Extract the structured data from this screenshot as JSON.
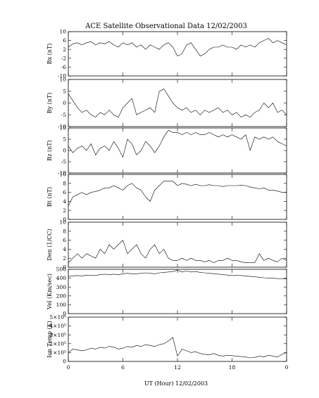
{
  "chart_data": {
    "type": "line",
    "title": "ACE Satellite Observational Data   12/02/2003",
    "xlabel": "UT (Hour)   12/02/2003",
    "x_ticks": [
      "0",
      "6",
      "12",
      "18",
      "0"
    ],
    "xlim": [
      0,
      24
    ],
    "panels": [
      {
        "ylabel": "Bx (nT)",
        "ylim": [
          -10,
          10
        ],
        "y_ticks": [
          "10",
          "6",
          "2",
          "-2",
          "-6",
          "-10"
        ],
        "x": [
          0,
          0.5,
          1,
          1.5,
          2,
          2.5,
          3,
          3.5,
          4,
          4.5,
          5,
          5.5,
          6,
          6.5,
          7,
          7.5,
          8,
          8.5,
          9,
          9.5,
          10,
          10.5,
          11,
          11.5,
          12,
          12.5,
          13,
          13.5,
          14,
          14.5,
          15,
          15.5,
          16,
          16.5,
          17,
          17.5,
          18,
          18.5,
          19,
          19.5,
          20,
          20.5,
          21,
          21.5,
          22,
          22.5,
          23,
          23.5,
          24
        ],
        "values": [
          3,
          4.5,
          5,
          4,
          5,
          5.5,
          4,
          5,
          4.5,
          5.5,
          4,
          3,
          5,
          4,
          5,
          3,
          4,
          2,
          4,
          3,
          2,
          4,
          5,
          3,
          -1,
          0,
          4,
          5,
          2,
          -1,
          0,
          2,
          3,
          3,
          4,
          3,
          3,
          2,
          4,
          3,
          4,
          3,
          5,
          6,
          7,
          5,
          6,
          5,
          4
        ]
      },
      {
        "ylabel": "By (nT)",
        "ylim": [
          -10,
          10
        ],
        "y_ticks": [
          "10",
          "5",
          "0",
          "-5",
          "-10"
        ],
        "x": [
          0,
          0.5,
          1,
          1.5,
          2,
          2.5,
          3,
          3.5,
          4,
          4.5,
          5,
          5.5,
          6,
          6.5,
          7,
          7.5,
          8,
          8.5,
          9,
          9.5,
          10,
          10.5,
          11,
          11.5,
          12,
          12.5,
          13,
          13.5,
          14,
          14.5,
          15,
          15.5,
          16,
          16.5,
          17,
          17.5,
          18,
          18.5,
          19,
          19.5,
          20,
          20.5,
          21,
          21.5,
          22,
          22.5,
          23,
          23.5,
          24
        ],
        "values": [
          4,
          1,
          -2,
          -4,
          -3,
          -5,
          -6,
          -4,
          -5,
          -3,
          -5,
          -6,
          -2,
          0,
          2,
          -5,
          -4,
          -3,
          -2,
          -4,
          5,
          6,
          3,
          0,
          -2,
          -3,
          -2,
          -4,
          -3,
          -5,
          -3,
          -4,
          -3,
          -2,
          -4,
          -3,
          -5,
          -4,
          -6,
          -5,
          -6,
          -4,
          -3,
          0,
          -2,
          0,
          -4,
          -3,
          -5
        ]
      },
      {
        "ylabel": "Bz (nT)",
        "ylim": [
          -10,
          10
        ],
        "y_ticks": [
          "10",
          "5",
          "0",
          "-5",
          "-10"
        ],
        "x": [
          0,
          0.5,
          1,
          1.5,
          2,
          2.5,
          3,
          3.5,
          4,
          4.5,
          5,
          5.5,
          6,
          6.5,
          7,
          7.5,
          8,
          8.5,
          9,
          9.5,
          10,
          10.5,
          11,
          11.5,
          12,
          12.5,
          13,
          13.5,
          14,
          14.5,
          15,
          15.5,
          16,
          16.5,
          17,
          17.5,
          18,
          18.5,
          19,
          19.5,
          20,
          20.5,
          21,
          21.5,
          22,
          22.5,
          23,
          23.5,
          24
        ],
        "values": [
          2,
          -1,
          1,
          2,
          0,
          3,
          -2,
          1,
          2,
          0,
          4,
          1,
          -3,
          5,
          3,
          -2,
          0,
          4,
          2,
          -1,
          2,
          6,
          9,
          8,
          8,
          7,
          8,
          7,
          8,
          7,
          7,
          8,
          7,
          6,
          7,
          6,
          7,
          6,
          5,
          7,
          0,
          6,
          5,
          6,
          5,
          6,
          4,
          3,
          2
        ]
      },
      {
        "ylabel": "Bt (nT)",
        "ylim": [
          0,
          10
        ],
        "y_ticks": [
          "10",
          "8",
          "6",
          "4",
          "2",
          "0"
        ],
        "x": [
          0,
          0.5,
          1,
          1.5,
          2,
          2.5,
          3,
          3.5,
          4,
          4.5,
          5,
          5.5,
          6,
          6.5,
          7,
          7.5,
          8,
          8.5,
          9,
          9.5,
          10,
          10.5,
          11,
          11.5,
          12,
          12.5,
          13,
          13.5,
          14,
          14.5,
          15,
          15.5,
          16,
          16.5,
          17,
          17.5,
          18,
          18.5,
          19,
          19.5,
          20,
          20.5,
          21,
          21.5,
          22,
          22.5,
          23,
          23.5,
          24
        ],
        "values": [
          3,
          5,
          5.5,
          6,
          5.5,
          6,
          6.2,
          6.5,
          7,
          7,
          7.5,
          7,
          6.5,
          7.5,
          8,
          7,
          6.5,
          5,
          4,
          6.5,
          7.5,
          8.5,
          8.5,
          8.5,
          7.5,
          8,
          7.8,
          7.5,
          7.8,
          7.5,
          7.5,
          7.7,
          7.5,
          7.5,
          7.3,
          7.5,
          7.5,
          7.5,
          7.6,
          7.5,
          7.2,
          7,
          6.8,
          7,
          6.5,
          6.5,
          6.3,
          6,
          6
        ]
      },
      {
        "ylabel": "Den (1/CC)",
        "ylim": [
          0,
          10
        ],
        "y_ticks": [
          "10",
          "8",
          "6",
          "4",
          "2",
          "0"
        ],
        "x": [
          0,
          0.5,
          1,
          1.5,
          2,
          2.5,
          3,
          3.5,
          4,
          4.5,
          5,
          5.5,
          6,
          6.5,
          7,
          7.5,
          8,
          8.5,
          9,
          9.5,
          10,
          10.5,
          11,
          11.5,
          12,
          12.5,
          13,
          13.5,
          14,
          14.5,
          15,
          15.5,
          16,
          16.5,
          17,
          17.5,
          18,
          18.5,
          19,
          19.5,
          20,
          20.5,
          21,
          21.5,
          22,
          22.5,
          23,
          23.5,
          24
        ],
        "values": [
          1,
          2,
          3,
          2,
          3,
          2.5,
          2,
          4,
          3,
          5,
          4,
          5,
          6,
          3,
          4,
          5,
          3,
          2,
          4,
          5,
          3,
          4,
          2,
          1.5,
          1.5,
          2,
          1.5,
          2,
          1.5,
          1.5,
          1.2,
          1.5,
          1,
          1.5,
          1.5,
          2,
          1.5,
          1.5,
          1.2,
          1,
          1,
          1,
          3,
          1.5,
          2,
          1.5,
          1.2,
          2,
          1.5
        ]
      },
      {
        "ylabel": "Vel (Km/sec)",
        "ylim": [
          0,
          500
        ],
        "y_ticks": [
          "500",
          "400",
          "300",
          "200",
          "100",
          "0"
        ],
        "x": [
          0,
          0.5,
          1,
          1.5,
          2,
          2.5,
          3,
          3.5,
          4,
          4.5,
          5,
          5.5,
          6,
          6.5,
          7,
          7.5,
          8,
          8.5,
          9,
          9.5,
          10,
          10.5,
          11,
          11.5,
          12,
          12.5,
          13,
          13.5,
          14,
          14.5,
          15,
          15.5,
          16,
          16.5,
          17,
          17.5,
          18,
          18.5,
          19,
          19.5,
          20,
          20.5,
          21,
          21.5,
          22,
          22.5,
          23,
          23.5,
          24
        ],
        "values": [
          420,
          425,
          430,
          425,
          435,
          430,
          430,
          440,
          445,
          440,
          445,
          440,
          450,
          455,
          450,
          450,
          455,
          460,
          455,
          450,
          460,
          465,
          470,
          475,
          490,
          470,
          480,
          470,
          475,
          465,
          460,
          455,
          450,
          445,
          440,
          435,
          430,
          430,
          430,
          425,
          420,
          415,
          410,
          405,
          400,
          400,
          395,
          395,
          390
        ]
      },
      {
        "ylabel": "Ion Temp (K)",
        "ylim": [
          0,
          500000
        ],
        "y_ticks": [
          "5×10⁵",
          "4×10⁵",
          "3×10⁵",
          "2×10⁵",
          "1×10⁵",
          "0"
        ],
        "x": [
          0,
          0.5,
          1,
          1.5,
          2,
          2.5,
          3,
          3.5,
          4,
          4.5,
          5,
          5.5,
          6,
          6.5,
          7,
          7.5,
          8,
          8.5,
          9,
          9.5,
          10,
          10.5,
          11,
          11.5,
          12,
          12.5,
          13,
          13.5,
          14,
          14.5,
          15,
          15.5,
          16,
          16.5,
          17,
          17.5,
          18,
          18.5,
          19,
          19.5,
          20,
          20.5,
          21,
          21.5,
          22,
          22.5,
          23,
          23.5,
          24
        ],
        "values": [
          100000,
          140000,
          130000,
          120000,
          130000,
          150000,
          140000,
          160000,
          150000,
          170000,
          160000,
          140000,
          150000,
          170000,
          160000,
          180000,
          170000,
          190000,
          180000,
          170000,
          190000,
          200000,
          230000,
          270000,
          60000,
          140000,
          120000,
          100000,
          110000,
          90000,
          80000,
          75000,
          90000,
          70000,
          60000,
          70000,
          65000,
          60000,
          55000,
          50000,
          40000,
          45000,
          60000,
          50000,
          70000,
          60000,
          50000,
          80000,
          100000
        ]
      }
    ]
  }
}
